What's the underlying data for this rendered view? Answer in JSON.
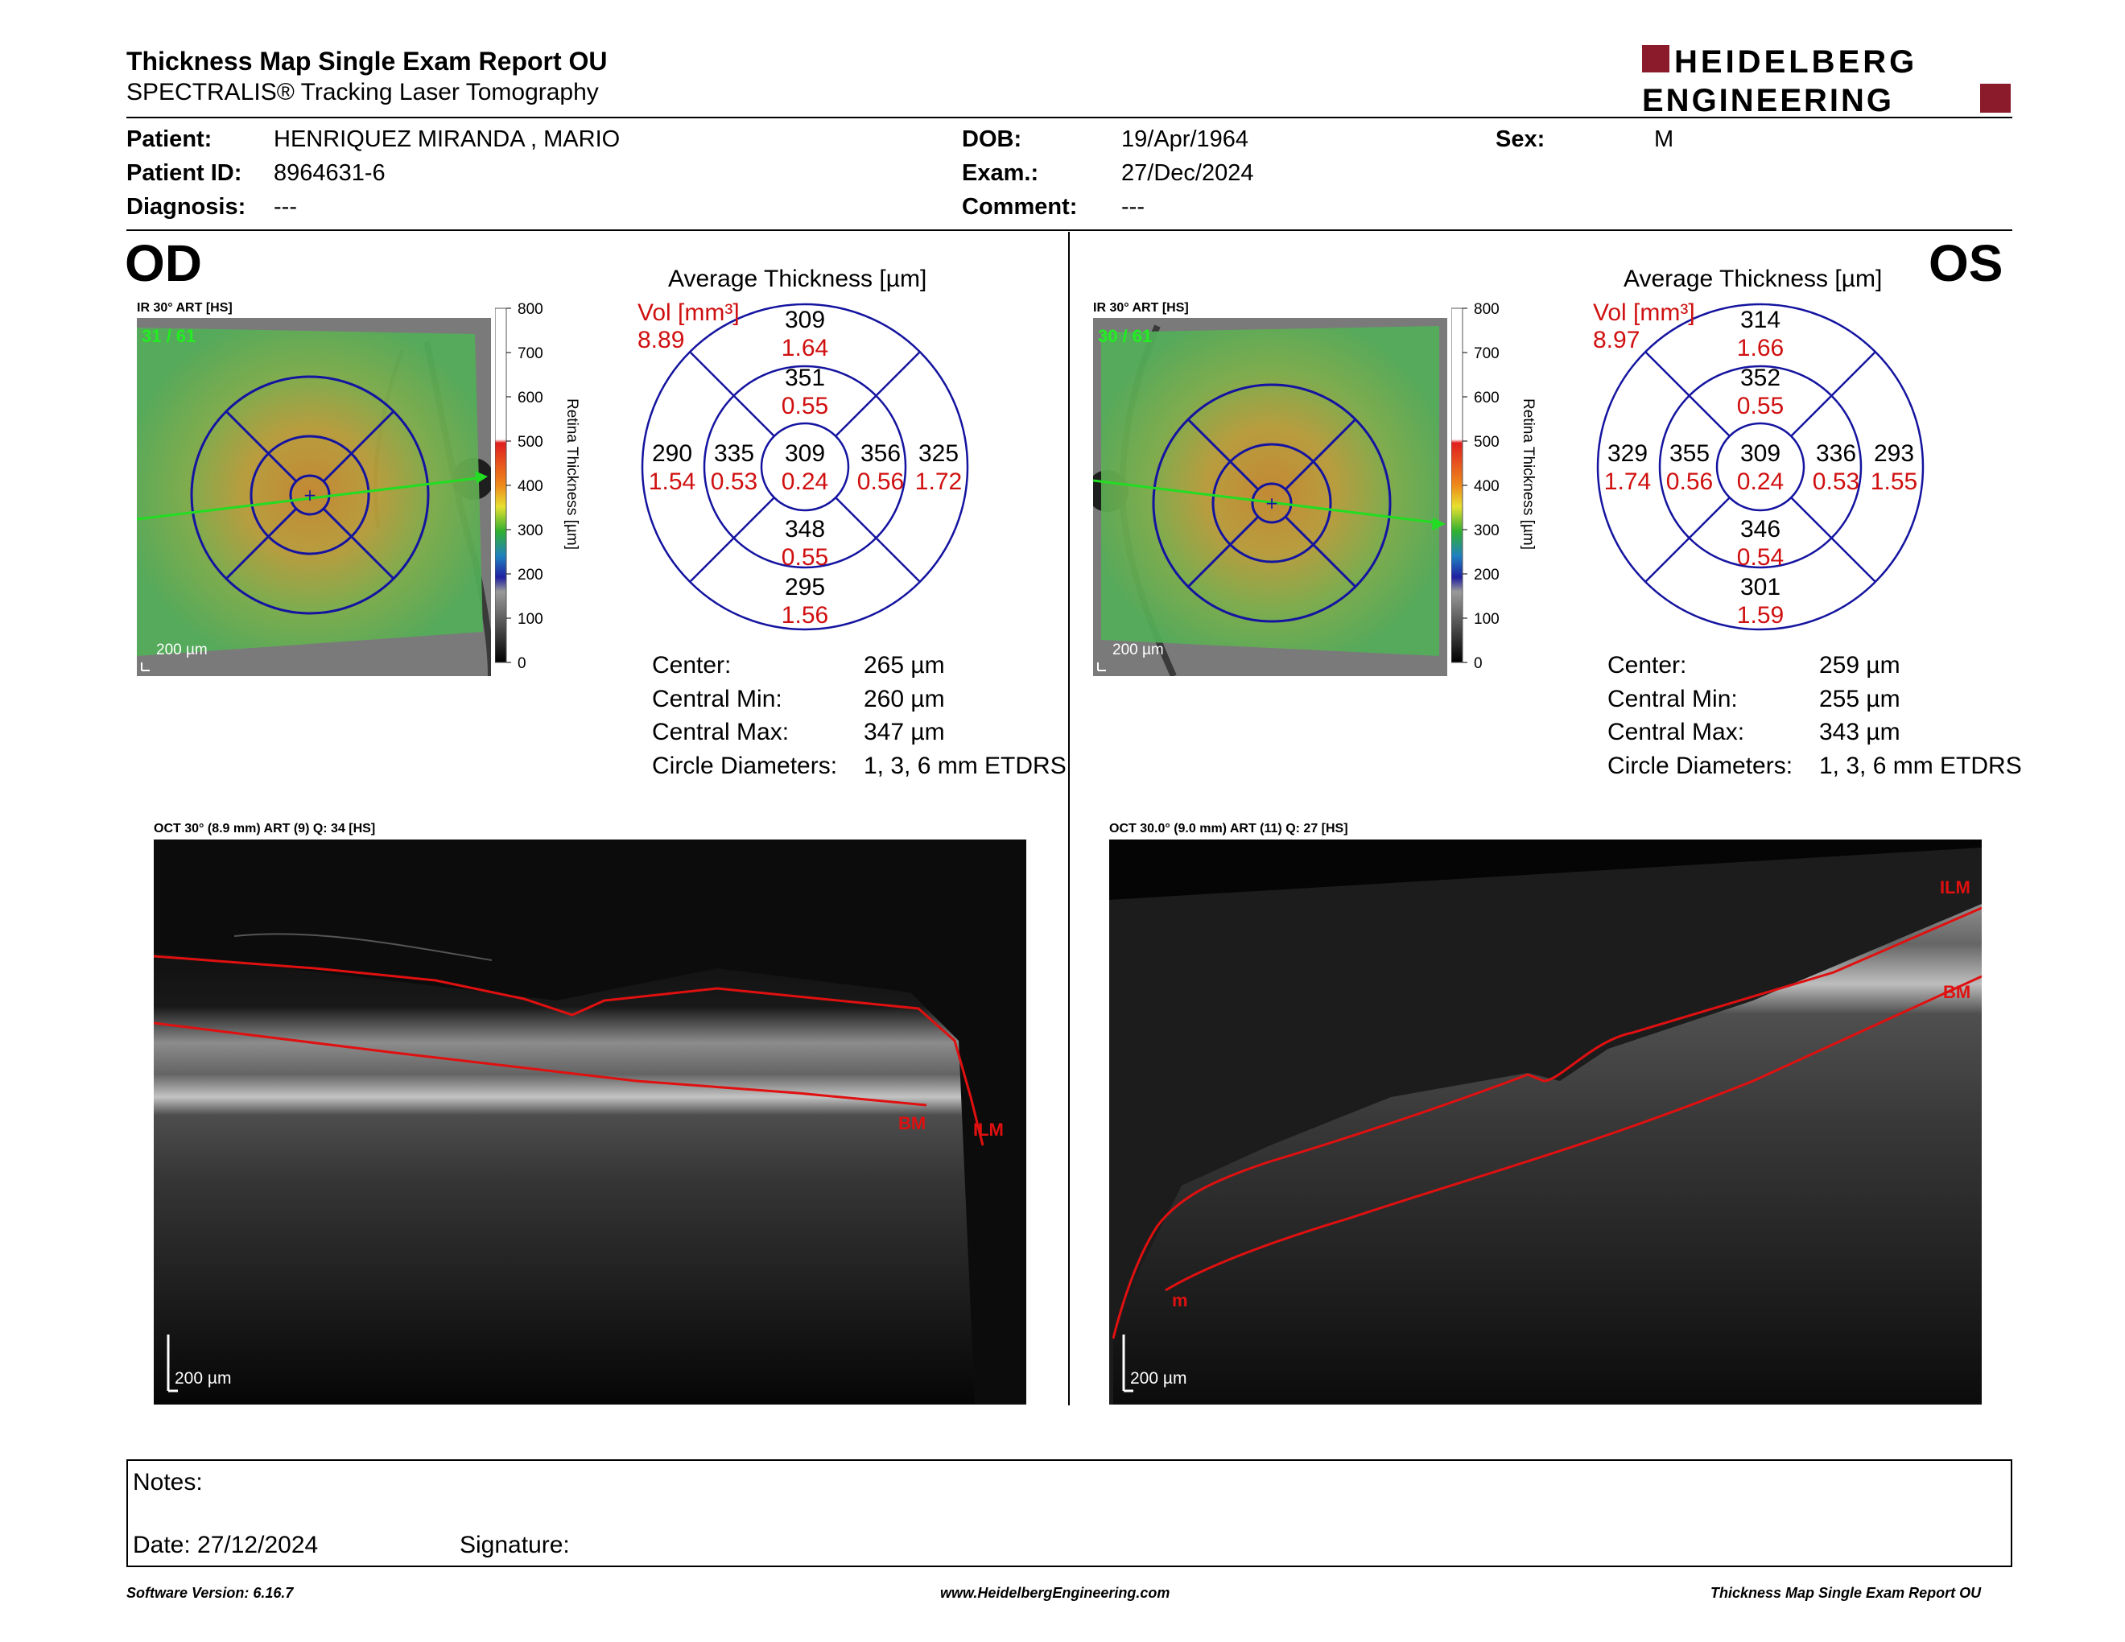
{
  "header": {
    "title": "Thickness Map Single Exam Report OU",
    "subtitle": "SPECTRALIS® Tracking Laser Tomography",
    "logo_line1": "HEIDELBERG",
    "logo_line2": "ENGINEERING",
    "brand_color": "#8b1a2b"
  },
  "patient": {
    "patient_label": "Patient:",
    "patient_value": "HENRIQUEZ MIRANDA , MARIO",
    "id_label": "Patient ID:",
    "id_value": "8964631-6",
    "diag_label": "Diagnosis:",
    "diag_value": "---",
    "dob_label": "DOB:",
    "dob_value": "19/Apr/1964",
    "exam_label": "Exam.:",
    "exam_value": "27/Dec/2024",
    "comment_label": "Comment:",
    "comment_value": "---",
    "sex_label": "Sex:",
    "sex_value": "M"
  },
  "od": {
    "eye": "OD",
    "ir_label": "IR 30° ART [HS]",
    "frames": "31 / 61",
    "scale": "200 µm",
    "colorbar_ticks": [
      "800",
      "700",
      "600",
      "500",
      "400",
      "300",
      "200",
      "100",
      "0"
    ],
    "colorbar_label": "Retina Thickness [µm]",
    "avg_title": "Average Thickness [µm]",
    "vol_label": "Vol [mm³]",
    "vol_value": "8.89",
    "grid": {
      "center_t": "309",
      "center_v": "0.24",
      "inner_sup_t": "351",
      "inner_sup_v": "0.55",
      "inner_inf_t": "348",
      "inner_inf_v": "0.55",
      "inner_left_t": "335",
      "inner_left_v": "0.53",
      "inner_right_t": "356",
      "inner_right_v": "0.56",
      "outer_sup_t": "309",
      "outer_sup_v": "1.64",
      "outer_inf_t": "295",
      "outer_inf_v": "1.56",
      "outer_left_t": "290",
      "outer_left_v": "1.54",
      "outer_right_t": "325",
      "outer_right_v": "1.72"
    },
    "stats": {
      "center_label": "Center:",
      "center_value": "265 µm",
      "cmin_label": "Central Min:",
      "cmin_value": "260 µm",
      "cmax_label": "Central Max:",
      "cmax_value": "347 µm",
      "diam_label": "Circle Diameters:",
      "diam_value": "1, 3, 6 mm ETDRS"
    },
    "oct_label": "OCT 30° (8.9 mm) ART (9) Q: 34 [HS]",
    "oct_scale": "200 µm",
    "ilm_label": "ILM",
    "bm_label": "BM"
  },
  "os": {
    "eye": "OS",
    "ir_label": "IR 30° ART [HS]",
    "frames": "30 / 61",
    "scale": "200 µm",
    "colorbar_ticks": [
      "800",
      "700",
      "600",
      "500",
      "400",
      "300",
      "200",
      "100",
      "0"
    ],
    "colorbar_label": "Retina Thickness [µm]",
    "avg_title": "Average Thickness [µm]",
    "vol_label": "Vol [mm³]",
    "vol_value": "8.97",
    "grid": {
      "center_t": "309",
      "center_v": "0.24",
      "inner_sup_t": "352",
      "inner_sup_v": "0.55",
      "inner_inf_t": "346",
      "inner_inf_v": "0.54",
      "inner_left_t": "355",
      "inner_left_v": "0.56",
      "inner_right_t": "336",
      "inner_right_v": "0.53",
      "outer_sup_t": "314",
      "outer_sup_v": "1.66",
      "outer_inf_t": "301",
      "outer_inf_v": "1.59",
      "outer_left_t": "329",
      "outer_left_v": "1.74",
      "outer_right_t": "293",
      "outer_right_v": "1.55"
    },
    "stats": {
      "center_label": "Center:",
      "center_value": "259 µm",
      "cmin_label": "Central Min:",
      "cmin_value": "255 µm",
      "cmax_label": "Central Max:",
      "cmax_value": "343 µm",
      "diam_label": "Circle Diameters:",
      "diam_value": "1, 3, 6 mm ETDRS"
    },
    "oct_label": "OCT 30.0° (9.0 mm) ART (11) Q: 27 [HS]",
    "oct_scale": "200 µm",
    "ilm_label": "ILM",
    "bm_label": "BM",
    "m_label": "m"
  },
  "notes": {
    "notes_label": "Notes:",
    "date_label": "Date: 27/12/2024",
    "signature_label": "Signature:"
  },
  "footer": {
    "version": "Software Version: 6.16.7",
    "website": "www.HeidelbergEngineering.com",
    "report": "Thickness Map Single Exam Report OU"
  }
}
